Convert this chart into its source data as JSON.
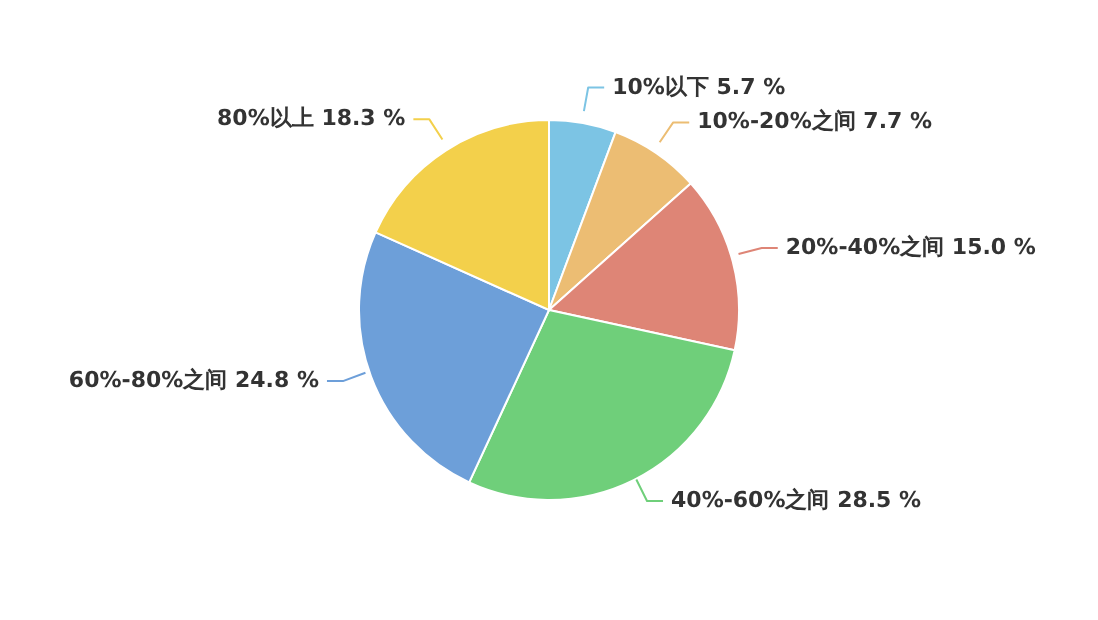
{
  "chart_data": {
    "type": "pie",
    "categories": [
      "10%以下",
      "10%-20%之间",
      "20%-40%之间",
      "40%-60%之间",
      "60%-80%之间",
      "80%以上"
    ],
    "values": [
      5.7,
      7.7,
      15.0,
      28.5,
      24.8,
      18.3
    ],
    "value_labels": [
      "5.7 %",
      "7.7 %",
      "15.0 %",
      "28.5 %",
      "24.8 %",
      "18.3 %"
    ],
    "colors": [
      "#7cc4e4",
      "#ecbd73",
      "#de8576",
      "#6fcf7a",
      "#6d9fd9",
      "#f3d04b"
    ]
  }
}
